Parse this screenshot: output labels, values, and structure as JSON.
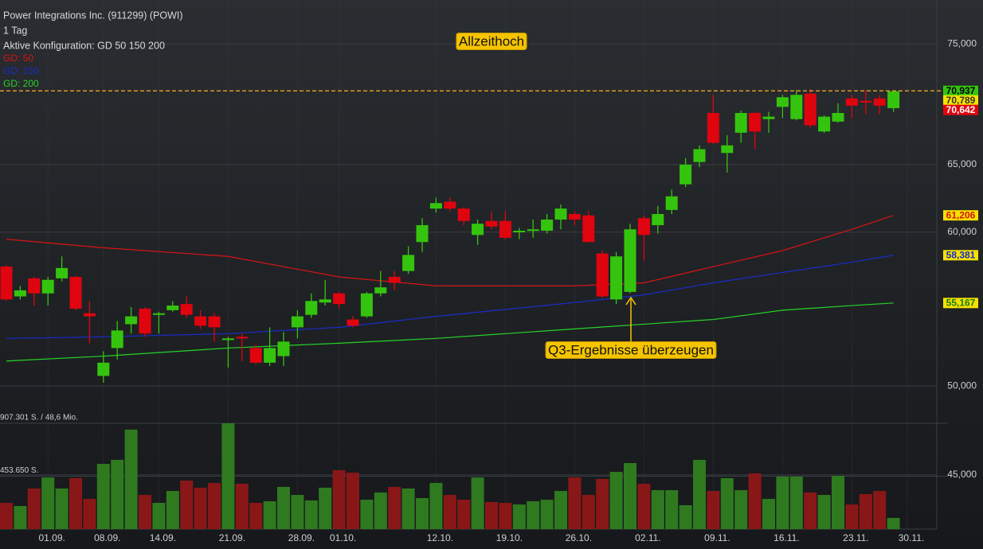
{
  "chart_data": {
    "type": "candlestick",
    "title": "Power Integrations Inc. (911299) (POWI)",
    "interval": "1 Tag",
    "config": "Aktive Konfiguration: GD 50 150 200",
    "log_scale": true,
    "grid": true,
    "ylim": [
      42.2,
      79
    ],
    "yticks": [
      {
        "value": 75,
        "label": "75,000"
      },
      {
        "value": 65,
        "label": "65,000"
      },
      {
        "value": 60,
        "label": "60,000"
      },
      {
        "value": 50,
        "label": "50,000"
      },
      {
        "value": 45,
        "label": "45,000"
      }
    ],
    "y2lim": [
      0,
      907301
    ],
    "y2ticks": [
      {
        "value": 907301,
        "label": "907.301 S. / 48,6 Mio."
      },
      {
        "value": 453650,
        "label": "453.650 S."
      }
    ],
    "up_color": "#35c40e",
    "down_color": "#e0040f",
    "volume_up_color": "#2f7a1f",
    "volume_down_color": "#8a1717",
    "categories": [
      null,
      null,
      null,
      "01.09.",
      null,
      null,
      null,
      "08.09.",
      null,
      null,
      null,
      "14.09.",
      null,
      null,
      null,
      null,
      "21.09.",
      null,
      null,
      null,
      null,
      "28.09.",
      null,
      null,
      "01.10.",
      null,
      null,
      null,
      null,
      null,
      null,
      "12.10.",
      null,
      null,
      null,
      null,
      "19.10.",
      null,
      null,
      null,
      null,
      "26.10.",
      null,
      null,
      null,
      null,
      "02.11.",
      null,
      null,
      null,
      null,
      "09.11.",
      null,
      null,
      null,
      null,
      "16.11.",
      null,
      null,
      null,
      null,
      "23.11.",
      null,
      null,
      null,
      "30.11."
    ],
    "open": [
      57.6,
      55.6,
      56.8,
      55.8,
      56.8,
      56.9,
      54.5,
      50.6,
      52.3,
      53.8,
      54.8,
      54.4,
      54.7,
      55.1,
      54.3,
      54.3,
      52.8,
      53.0,
      52.3,
      51.4,
      51.8,
      53.6,
      54.4,
      55.2,
      55.8,
      54.1,
      54.3,
      55.8,
      56.9,
      57.3,
      59.3,
      61.7,
      62.2,
      61.7,
      59.8,
      60.8,
      60.8,
      60.0,
      60.1,
      60.1,
      60.9,
      61.3,
      61.2,
      58.5,
      55.4,
      55.9,
      61.0,
      60.5,
      61.6,
      63.5,
      65.2,
      69.1,
      65.9,
      67.5,
      69.1,
      68.6,
      69.6,
      68.6,
      70.7,
      67.6,
      68.4,
      70.3,
      70.1,
      70.3,
      69.5,
      null
    ],
    "high": [
      57.7,
      56.3,
      56.9,
      56.9,
      58.3,
      57.0,
      55.3,
      52.1,
      54.0,
      54.9,
      54.9,
      54.6,
      55.3,
      55.6,
      54.7,
      54.5,
      53.0,
      53.2,
      52.5,
      53.6,
      53.3,
      54.7,
      55.8,
      56.7,
      55.9,
      54.3,
      55.9,
      57.3,
      57.3,
      59.0,
      61.0,
      62.5,
      62.5,
      61.8,
      60.9,
      61.5,
      61.5,
      60.3,
      60.9,
      61.3,
      62.0,
      61.5,
      61.5,
      58.7,
      58.6,
      60.6,
      61.2,
      61.9,
      63.1,
      65.5,
      66.5,
      70.6,
      67.3,
      69.3,
      69.2,
      69.2,
      70.6,
      71.0,
      71.1,
      68.9,
      69.9,
      70.6,
      71.0,
      70.6,
      71.0,
      null
    ],
    "low": [
      55.3,
      55.4,
      55.0,
      55.0,
      56.6,
      54.7,
      52.6,
      50.2,
      51.6,
      53.2,
      53.0,
      53.2,
      54.6,
      54.2,
      53.5,
      52.7,
      51.1,
      51.5,
      51.3,
      51.2,
      51.2,
      52.9,
      54.2,
      55.0,
      54.8,
      53.6,
      54.2,
      55.6,
      56.0,
      57.1,
      58.6,
      61.4,
      61.5,
      60.5,
      59.1,
      60.2,
      59.5,
      59.5,
      59.6,
      59.9,
      60.2,
      60.5,
      59.3,
      55.5,
      55.1,
      55.8,
      58.0,
      59.9,
      61.3,
      63.3,
      64.8,
      66.6,
      64.4,
      66.7,
      66.2,
      67.5,
      68.7,
      68.5,
      67.9,
      67.5,
      68.3,
      68.7,
      69.0,
      69.0,
      69.2,
      null
    ],
    "close": [
      55.4,
      56.0,
      55.8,
      56.7,
      57.5,
      54.8,
      54.3,
      51.4,
      53.4,
      54.3,
      53.2,
      54.5,
      55.0,
      54.4,
      53.7,
      53.6,
      52.9,
      52.9,
      51.4,
      52.3,
      52.7,
      54.3,
      55.3,
      55.4,
      55.1,
      53.7,
      55.8,
      56.2,
      56.5,
      58.4,
      60.5,
      62.1,
      61.7,
      60.8,
      60.6,
      60.4,
      59.6,
      60.1,
      60.2,
      60.9,
      61.7,
      60.9,
      59.3,
      55.6,
      58.3,
      60.2,
      59.8,
      61.3,
      62.6,
      65.0,
      66.2,
      66.7,
      66.5,
      69.1,
      67.6,
      68.8,
      70.4,
      70.6,
      68.1,
      68.8,
      69.1,
      69.7,
      70.0,
      69.7,
      70.9,
      null
    ],
    "volume": [
      225000,
      198000,
      348000,
      443000,
      348000,
      437000,
      259000,
      559000,
      594000,
      853000,
      293000,
      225000,
      327000,
      416000,
      355000,
      396000,
      907301,
      389000,
      225000,
      239000,
      362000,
      293000,
      246000,
      355000,
      505000,
      484000,
      252000,
      314000,
      362000,
      348000,
      266000,
      396000,
      293000,
      252000,
      443000,
      232000,
      225000,
      211000,
      239000,
      252000,
      327000,
      443000,
      293000,
      430000,
      491000,
      566000,
      389000,
      334000,
      334000,
      205000,
      594000,
      327000,
      437000,
      334000,
      478000,
      259000,
      450000,
      450000,
      314000,
      293000,
      457000,
      211000,
      300000,
      327000,
      96000,
      null
    ],
    "moving_averages": [
      {
        "name": "GD: 50",
        "color": "#d81414",
        "x": [
          0,
          7,
          16,
          24,
          31,
          41,
          46,
          51,
          56,
          61,
          64
        ],
        "values": [
          59.5,
          58.9,
          58.3,
          56.9,
          56.3,
          56.3,
          56.5,
          57.6,
          58.7,
          60.2,
          61.206
        ]
      },
      {
        "name": "GD: 150",
        "color": "#1a2cc8",
        "x": [
          0,
          7,
          16,
          24,
          31,
          41,
          46,
          51,
          56,
          61,
          64
        ],
        "values": [
          52.9,
          53.0,
          53.2,
          53.6,
          54.3,
          55.2,
          55.7,
          56.5,
          57.2,
          57.9,
          58.381
        ]
      },
      {
        "name": "GD: 200",
        "color": "#27d427",
        "x": [
          0,
          7,
          16,
          24,
          31,
          41,
          46,
          51,
          56,
          61,
          64
        ],
        "values": [
          51.5,
          51.8,
          52.3,
          52.6,
          52.9,
          53.5,
          53.8,
          54.1,
          54.7,
          55.0,
          55.167
        ]
      }
    ],
    "price_labels": [
      {
        "value": 70.937,
        "label": "70,937",
        "color": "#35c40e",
        "text_color": "#000000"
      },
      {
        "value": 70.789,
        "label": "70,789",
        "color": "#f5e100",
        "text_color": "#333333"
      },
      {
        "value": 70.642,
        "label": "70,642",
        "color": "#e0040f",
        "text_color": "#ffffff"
      },
      {
        "value": 61.206,
        "label": "61,206",
        "color": "#f5e100",
        "text_color": "#d81414"
      },
      {
        "value": 58.381,
        "label": "58,381",
        "color": "#f5e100",
        "text_color": "#1a2cc8"
      },
      {
        "value": 55.167,
        "label": "55,167",
        "color": "#f5e100",
        "text_color": "#1a7a1a"
      }
    ],
    "annotations": [
      "Allzeithoch",
      "Q3-Ergebnisse überzeugen"
    ],
    "reference_line_color": "#f0a020"
  }
}
